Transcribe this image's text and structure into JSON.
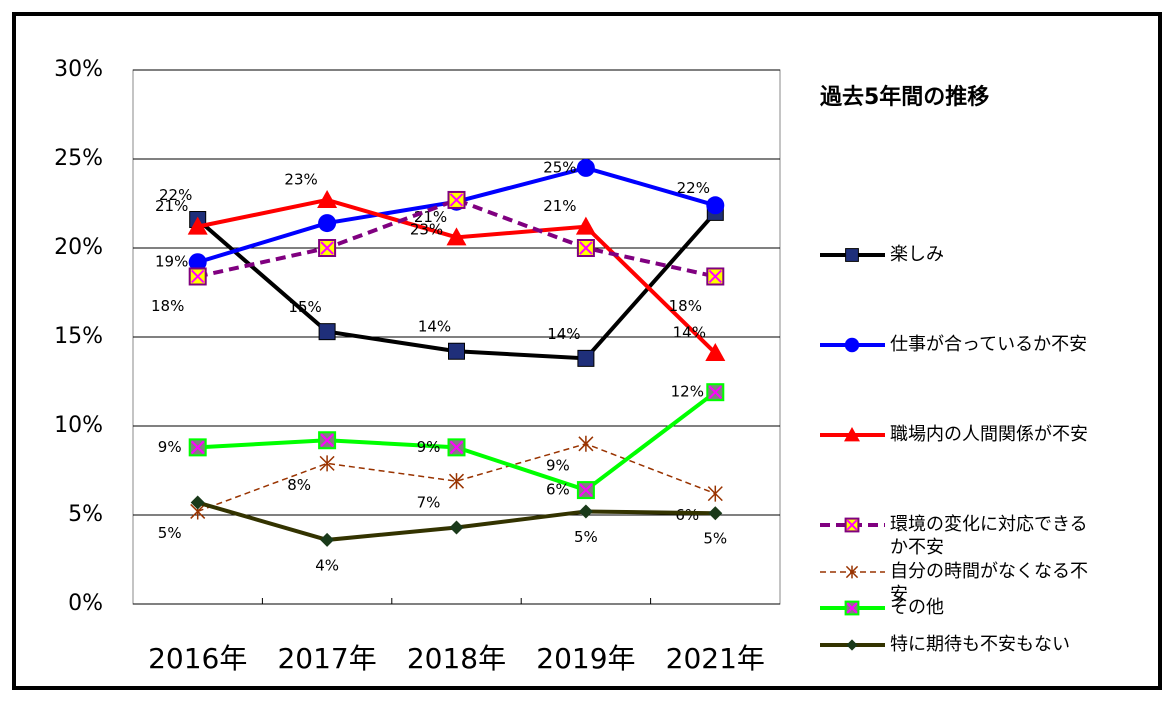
{
  "chart_data": {
    "type": "line",
    "title": "過去5年間の推移",
    "categories": [
      "2016年",
      "2017年",
      "2018年",
      "2019年",
      "2021年"
    ],
    "ylim": [
      0,
      0.3
    ],
    "yticks": [
      {
        "value": 0,
        "label": "0%"
      },
      {
        "value": 0.05,
        "label": "5%"
      },
      {
        "value": 0.1,
        "label": "10%"
      },
      {
        "value": 0.15,
        "label": "15%"
      },
      {
        "value": 0.2,
        "label": "20%"
      },
      {
        "value": 0.25,
        "label": "25%"
      },
      {
        "value": 0.3,
        "label": "30%"
      }
    ],
    "grid": true,
    "series": [
      {
        "name": "楽しみ",
        "color": "#000000",
        "marker": "square",
        "marker_color": "#1f2f7a",
        "values": [
          0.216,
          0.153,
          0.142,
          0.138,
          0.22
        ],
        "value_labels": [
          "22%",
          "15%",
          "14%",
          "14%",
          "22%"
        ]
      },
      {
        "name": "仕事が合っているか不安",
        "color": "#0000ff",
        "marker": "circle",
        "marker_color": "#0000ff",
        "values": [
          0.192,
          0.214,
          0.226,
          0.245,
          0.224
        ],
        "value_labels": [
          "19%",
          null,
          null,
          "25%",
          null
        ]
      },
      {
        "name": "職場内の人間関係が不安",
        "color": "#ff0000",
        "marker": "triangle",
        "marker_color": "#ff0000",
        "values": [
          0.212,
          0.227,
          0.206,
          0.212,
          0.141
        ],
        "value_labels": [
          "21%",
          "23%",
          "21%",
          "21%",
          "14%"
        ]
      },
      {
        "name": "環境の変化に対応できるか不安",
        "color": "#800080",
        "marker": "xsquare",
        "marker_color": "#ffff00",
        "dash": true,
        "values": [
          0.184,
          0.2,
          0.227,
          0.2,
          0.184
        ],
        "value_labels": [
          "18%",
          null,
          "23%",
          null,
          "18%"
        ]
      },
      {
        "name": "自分の時間がなくなる不安",
        "color": "#993300",
        "marker": "asterisk",
        "marker_color": "#993300",
        "dash": true,
        "thin": true,
        "values": [
          0.052,
          0.079,
          0.069,
          0.09,
          0.062
        ],
        "value_labels": [
          "5%",
          "8%",
          "7%",
          "9%",
          "6%"
        ]
      },
      {
        "name": "その他",
        "color": "#00ff00",
        "marker": "xsquare",
        "marker_color": "#808080",
        "values": [
          0.088,
          0.092,
          0.088,
          0.064,
          0.119
        ],
        "value_labels": [
          "9%",
          null,
          "9%",
          "6%",
          "12%"
        ]
      },
      {
        "name": "特に期待も不安もない",
        "color": "#333300",
        "marker": "diamond",
        "marker_color": "#1a3a1a",
        "values": [
          0.057,
          0.036,
          0.043,
          0.052,
          0.051
        ],
        "value_labels": [
          null,
          "4%",
          null,
          "5%",
          "5%"
        ]
      }
    ]
  }
}
